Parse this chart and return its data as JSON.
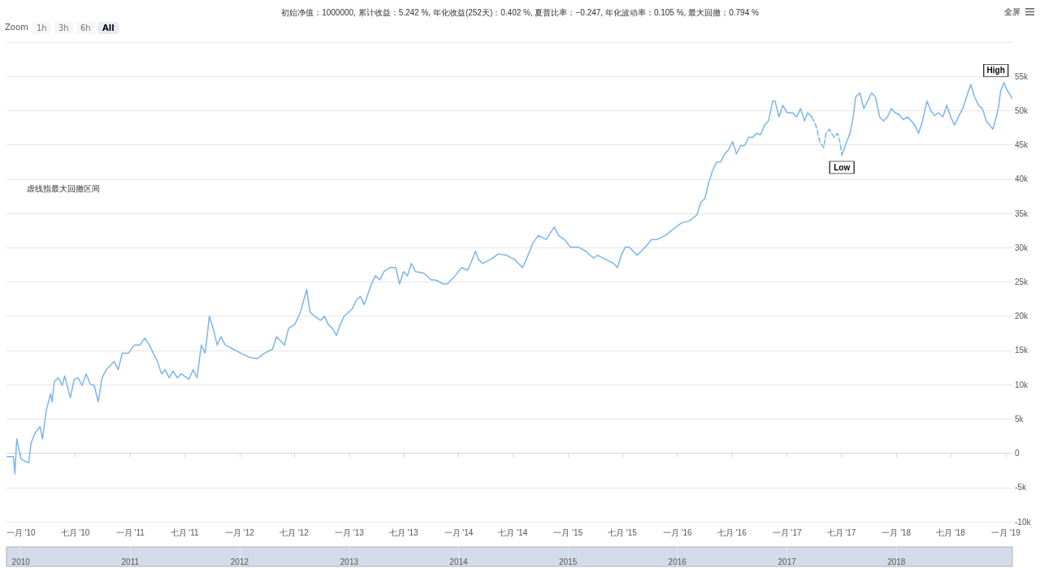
{
  "chart_data": {
    "type": "line",
    "title": "初始净值：1000000, 累计收益：5.242 %, 年化收益(252天)：0.402 %, 夏普比率：−0.247, 年化波动率：0.105 %, 最大回撤：0.794 %",
    "annotations": [
      "虚线指最大回撤区间",
      {
        "text": "High",
        "x": "2018-12-26",
        "y": 54100
      },
      {
        "text": "Low",
        "x": "2017-07-03",
        "y": 43500
      },
      "Zoom",
      "1h",
      "3h",
      "6h",
      "All",
      "全屏"
    ],
    "series": [
      {
        "color": "#7cb5ec",
        "x": [
          "2009-11-16",
          "2009-12-07",
          "2009-12-12",
          "2009-12-18",
          "2010-01-01",
          "2010-01-16",
          "2010-01-27",
          "2010-02-04",
          "2010-02-18",
          "2010-03-06",
          "2010-03-14",
          "2010-03-27",
          "2010-04-10",
          "2010-04-15",
          "2010-04-23",
          "2010-05-06",
          "2010-05-19",
          "2010-05-27",
          "2010-06-15",
          "2010-06-28",
          "2010-07-11",
          "2010-07-24",
          "2010-08-07",
          "2010-08-20",
          "2010-09-03",
          "2010-09-16",
          "2010-09-29",
          "2010-10-13",
          "2010-11-08",
          "2010-11-22",
          "2010-12-05",
          "2010-12-26",
          "2011-01-14",
          "2011-02-02",
          "2011-02-18",
          "2011-03-06",
          "2011-03-19",
          "2011-04-02",
          "2011-04-15",
          "2011-04-28",
          "2011-05-11",
          "2011-05-24",
          "2011-06-07",
          "2011-06-20",
          "2011-07-16",
          "2011-07-30",
          "2011-08-12",
          "2011-08-26",
          "2011-09-08",
          "2011-09-22",
          "2011-10-05",
          "2011-10-18",
          "2011-10-31",
          "2011-11-14",
          "2011-12-10",
          "2012-01-06",
          "2012-02-02",
          "2012-02-28",
          "2012-03-24",
          "2012-04-20",
          "2012-05-03",
          "2012-05-30",
          "2012-06-12",
          "2012-07-03",
          "2012-07-22",
          "2012-08-12",
          "2012-08-23",
          "2012-09-08",
          "2012-09-27",
          "2012-10-10",
          "2012-10-23",
          "2012-11-06",
          "2012-11-19",
          "2012-12-02",
          "2012-12-15",
          "2013-01-11",
          "2013-01-24",
          "2013-02-07",
          "2013-02-20",
          "2013-03-16",
          "2013-03-29",
          "2013-04-13",
          "2013-04-26",
          "2013-05-16",
          "2013-06-05",
          "2013-06-18",
          "2013-07-01",
          "2013-07-14",
          "2013-07-27",
          "2013-08-10",
          "2013-09-06",
          "2013-10-02",
          "2013-10-15",
          "2013-11-11",
          "2013-11-24",
          "2013-12-20",
          "2014-01-11",
          "2014-01-30",
          "2014-02-12",
          "2014-02-26",
          "2014-03-08",
          "2014-03-22",
          "2014-04-18",
          "2014-05-14",
          "2014-06-10",
          "2014-07-06",
          "2014-08-02",
          "2014-08-15",
          "2014-09-06",
          "2014-09-24",
          "2014-10-20",
          "2014-11-16",
          "2014-11-30",
          "2014-12-20",
          "2015-01-09",
          "2015-02-04",
          "2015-03-01",
          "2015-03-27",
          "2015-04-10",
          "2015-05-06",
          "2015-06-02",
          "2015-06-15",
          "2015-06-28",
          "2015-07-11",
          "2015-07-24",
          "2015-08-20",
          "2015-09-16",
          "2015-10-07",
          "2015-10-26",
          "2015-11-22",
          "2015-12-18",
          "2016-01-14",
          "2016-02-10",
          "2016-03-06",
          "2016-03-19",
          "2016-04-02",
          "2016-04-15",
          "2016-04-28",
          "2016-05-11",
          "2016-05-24",
          "2016-06-07",
          "2016-06-20",
          "2016-07-03",
          "2016-07-16",
          "2016-07-30",
          "2016-08-12",
          "2016-08-26",
          "2016-09-08",
          "2016-09-22",
          "2016-10-05",
          "2016-10-18",
          "2016-10-31",
          "2016-11-14",
          "2016-11-22",
          "2016-12-05",
          "2016-12-18",
          "2017-01-01",
          "2017-01-19",
          "2017-02-02",
          "2017-02-15",
          "2017-02-28",
          "2017-03-11",
          "2017-03-24"
        ],
        "values": [
          -500,
          -500,
          -3000,
          2100,
          -800,
          -1200,
          -1400,
          1500,
          3000,
          3900,
          2100,
          6300,
          8700,
          7500,
          10500,
          11000,
          9900,
          11300,
          8100,
          10800,
          11000,
          9900,
          11600,
          10100,
          9900,
          7500,
          11000,
          12200,
          13400,
          12200,
          14600,
          14600,
          15800,
          15800,
          16800,
          15800,
          14600,
          13400,
          11600,
          12200,
          11000,
          12000,
          11000,
          11600,
          10800,
          12200,
          11000,
          15800,
          14600,
          20000,
          18200,
          15800,
          17000,
          15800,
          15200,
          14600,
          14000,
          13800,
          14600,
          15200,
          17000,
          15800,
          18200,
          18800,
          20600,
          23900,
          20600,
          20000,
          19400,
          20000,
          18800,
          18200,
          17200,
          18800,
          20000,
          21100,
          22300,
          22900,
          21700,
          24700,
          25900,
          25300,
          26500,
          27100,
          27100,
          24700,
          26500,
          25900,
          27700,
          26500,
          26300,
          25300,
          25300,
          24700,
          24700,
          25900,
          27100,
          26700,
          27900,
          29500,
          28300,
          27700,
          28300,
          29100,
          28900,
          28300,
          27100,
          28300,
          30700,
          31800,
          31200,
          33000,
          31800,
          31200,
          30100,
          30100,
          29500,
          28500,
          28900,
          28300,
          27700,
          27100,
          28900,
          30100,
          30100,
          28900,
          30100,
          31200,
          31200,
          31800,
          32700,
          33600,
          33900,
          34800,
          36600,
          37200,
          39600,
          41300,
          42500,
          42500,
          43700,
          44300,
          45500,
          43700,
          44900,
          44900,
          46100,
          46100,
          46700,
          46500,
          47900,
          48500,
          51400,
          51400,
          49100,
          50800,
          49700,
          49700,
          49100,
          50300,
          48500,
          49700,
          49100
        ]
      },
      {
        "color": "#7cb5ec",
        "line_style": "dashed",
        "x": [
          "2017-03-24",
          "2017-04-07",
          "2017-04-20",
          "2017-05-03",
          "2017-05-11",
          "2017-05-22",
          "2017-06-07",
          "2017-06-18",
          "2017-06-26",
          "2017-07-03"
        ],
        "values": [
          49100,
          47900,
          45500,
          44600,
          46700,
          47300,
          46100,
          46700,
          45500,
          43500
        ]
      },
      {
        "color": "#7cb5ec",
        "x": [
          "2017-07-03",
          "2017-07-14",
          "2017-07-30",
          "2017-08-10",
          "2017-08-18",
          "2017-09-01",
          "2017-09-14",
          "2017-09-27",
          "2017-10-10",
          "2017-10-23",
          "2017-11-06",
          "2017-11-19",
          "2017-12-02",
          "2017-12-15",
          "2017-12-28",
          "2018-01-11",
          "2018-01-24",
          "2018-02-07",
          "2018-02-20",
          "2018-03-03",
          "2018-03-16",
          "2018-03-29",
          "2018-04-13",
          "2018-04-26",
          "2018-05-08",
          "2018-05-22",
          "2018-06-05",
          "2018-06-18",
          "2018-07-01",
          "2018-07-14",
          "2018-07-27",
          "2018-08-10",
          "2018-08-23",
          "2018-09-06",
          "2018-09-19",
          "2018-10-02",
          "2018-10-15",
          "2018-10-28",
          "2018-11-19",
          "2018-11-30",
          "2018-12-07",
          "2018-12-15",
          "2018-12-26",
          "2019-01-03",
          "2019-01-11",
          "2019-01-22"
        ],
        "values": [
          43500,
          44900,
          46700,
          49100,
          52000,
          52600,
          50300,
          51400,
          52600,
          52000,
          49100,
          48500,
          49100,
          50300,
          49700,
          49400,
          48700,
          49100,
          48500,
          47900,
          46700,
          48500,
          51400,
          50000,
          49300,
          49700,
          49100,
          50800,
          49100,
          47900,
          49100,
          50300,
          52000,
          53800,
          52000,
          50800,
          50300,
          48500,
          47300,
          49100,
          50300,
          52900,
          54100,
          53200,
          52600,
          51800
        ]
      }
    ],
    "xlim": [
      "2009-11-14",
      "2019-01-23"
    ],
    "xticks": [
      {
        "value": "2010-01-01",
        "label": "一月 '10"
      },
      {
        "value": "2010-07-01",
        "label": "七月 '10"
      },
      {
        "value": "2011-01-01",
        "label": "一月 '11"
      },
      {
        "value": "2011-07-01",
        "label": "七月 '11"
      },
      {
        "value": "2012-01-01",
        "label": "一月 '12"
      },
      {
        "value": "2012-07-01",
        "label": "七月 '12"
      },
      {
        "value": "2013-01-01",
        "label": "一月 '13"
      },
      {
        "value": "2013-07-01",
        "label": "七月 '13"
      },
      {
        "value": "2014-01-01",
        "label": "一月 '14"
      },
      {
        "value": "2014-07-01",
        "label": "七月 '14"
      },
      {
        "value": "2015-01-01",
        "label": "一月 '15"
      },
      {
        "value": "2015-07-01",
        "label": "七月 '15"
      },
      {
        "value": "2016-01-01",
        "label": "一月 '16"
      },
      {
        "value": "2016-07-01",
        "label": "七月 '16"
      },
      {
        "value": "2017-01-01",
        "label": "一月 '17"
      },
      {
        "value": "2017-07-01",
        "label": "七月 '17"
      },
      {
        "value": "2018-01-01",
        "label": "一月 '18"
      },
      {
        "value": "2018-07-01",
        "label": "七月 '18"
      },
      {
        "value": "2019-01-01",
        "label": "一月 '19"
      }
    ],
    "ylim": [
      -10000,
      60000
    ],
    "yticks": [
      {
        "value": -10000,
        "label": "-10k"
      },
      {
        "value": -5000,
        "label": "-5k"
      },
      0,
      {
        "value": 5000,
        "label": "5k"
      },
      {
        "value": 10000,
        "label": "10k"
      },
      {
        "value": 15000,
        "label": "15k"
      },
      {
        "value": 20000,
        "label": "20k"
      },
      {
        "value": 25000,
        "label": "25k"
      },
      {
        "value": 30000,
        "label": "30k"
      },
      {
        "value": 35000,
        "label": "35k"
      },
      {
        "value": 40000,
        "label": "40k"
      },
      {
        "value": 45000,
        "label": "45k"
      },
      {
        "value": 50000,
        "label": "50k"
      },
      {
        "value": 55000,
        "label": "55k"
      }
    ],
    "x2lim": [
      "2009-11-14",
      "2019-01-23"
    ],
    "x2ticks": [
      "2010",
      "2011",
      "2012",
      "2013",
      "2014",
      "2015",
      "2016",
      "2017",
      "2018"
    ],
    "grid": "y",
    "marker": "none",
    "line_style": "solid"
  }
}
